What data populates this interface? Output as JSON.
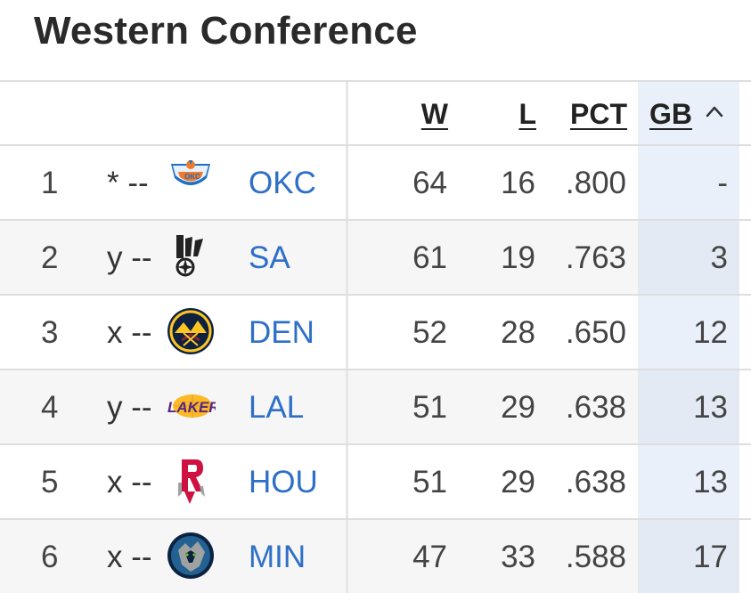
{
  "header": {
    "title": "Western Conference"
  },
  "columns": {
    "w": "W",
    "l": "L",
    "pct": "PCT",
    "gb": "GB"
  },
  "rows": [
    {
      "rank": "1",
      "status": "* --",
      "team": "OKC",
      "w": "64",
      "l": "16",
      "pct": ".800",
      "gb": "-",
      "logo": "thunder-logo-icon"
    },
    {
      "rank": "2",
      "status": "y --",
      "team": "SA",
      "w": "61",
      "l": "19",
      "pct": ".763",
      "gb": "3",
      "logo": "spurs-logo-icon"
    },
    {
      "rank": "3",
      "status": "x --",
      "team": "DEN",
      "w": "52",
      "l": "28",
      "pct": ".650",
      "gb": "12",
      "logo": "nuggets-logo-icon"
    },
    {
      "rank": "4",
      "status": "y --",
      "team": "LAL",
      "w": "51",
      "l": "29",
      "pct": ".638",
      "gb": "13",
      "logo": "lakers-logo-icon"
    },
    {
      "rank": "5",
      "status": "x --",
      "team": "HOU",
      "w": "51",
      "l": "29",
      "pct": ".638",
      "gb": "13",
      "logo": "rockets-logo-icon"
    },
    {
      "rank": "6",
      "status": "x --",
      "team": "MIN",
      "w": "47",
      "l": "33",
      "pct": ".588",
      "gb": "17",
      "logo": "timberwolves-logo-icon"
    }
  ],
  "colors": {
    "team_link": "#2e6fc7",
    "sorted_column_bg": "#e9f0f9",
    "alt_row_bg": "#f6f6f6"
  }
}
